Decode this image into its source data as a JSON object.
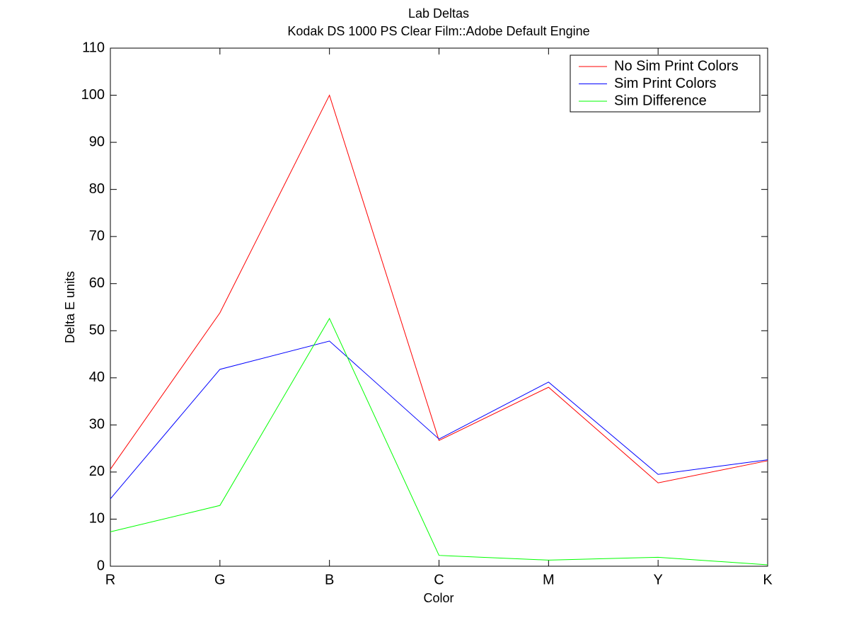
{
  "chart_data": {
    "type": "line",
    "title": "Lab Deltas",
    "subtitle": "Kodak DS 1000 PS Clear Film::Adobe Default Engine",
    "x_label": "Color",
    "y_label": "Delta E units",
    "categories": [
      "R",
      "G",
      "B",
      "C",
      "M",
      "Y",
      "K"
    ],
    "series": [
      {
        "name": "No Sim Print Colors",
        "color": "#ff0000",
        "values": [
          20.6,
          53.8,
          100,
          26.7,
          38.0,
          17.7,
          22.4
        ]
      },
      {
        "name": "Sim Print Colors",
        "color": "#0000ff",
        "values": [
          14.3,
          41.8,
          47.8,
          27.0,
          39.1,
          19.5,
          22.6
        ]
      },
      {
        "name": "Sim Difference",
        "color": "#00ff00",
        "values": [
          7.3,
          12.9,
          52.6,
          2.3,
          1.3,
          1.9,
          0.3
        ]
      }
    ],
    "ylim": [
      0,
      110
    ],
    "yticks": [
      0,
      10,
      20,
      30,
      40,
      50,
      60,
      70,
      80,
      90,
      100,
      110
    ],
    "grid": false,
    "legend": "upper right"
  }
}
